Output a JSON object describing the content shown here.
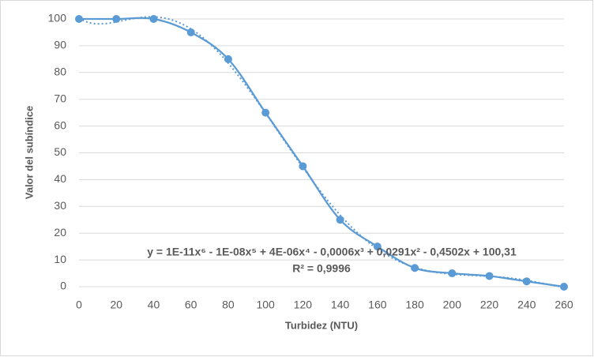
{
  "chart_data": {
    "type": "scatter_smooth",
    "x_label": "Turbidez (NTU)",
    "y_label": "Valor del subíndice",
    "series": [
      {
        "color": "#5b9bd5",
        "x": [
          0,
          20,
          40,
          60,
          80,
          100,
          120,
          140,
          160,
          180,
          200,
          220,
          240,
          260
        ],
        "values": [
          100,
          100,
          100,
          95,
          85,
          65,
          45,
          25,
          15,
          7,
          5,
          4,
          2,
          0
        ]
      }
    ],
    "trendline": {
      "type": "polynomial",
      "order": 6,
      "style": "dotted",
      "equation": "y = 1E-11x⁶ - 1E-08x⁵ + 4E-06x⁴ - 0,0006x³ + 0,0291x² - 0,4502x + 100,31",
      "r2": "R² = 0,9996"
    },
    "xlim": [
      0,
      260
    ],
    "xticks": [
      0,
      20,
      40,
      60,
      80,
      100,
      120,
      140,
      160,
      180,
      200,
      220,
      240,
      260
    ],
    "ylim": [
      0,
      100
    ],
    "yticks": [
      0,
      10,
      20,
      30,
      40,
      50,
      60,
      70,
      80,
      90,
      100
    ],
    "grid": true
  }
}
